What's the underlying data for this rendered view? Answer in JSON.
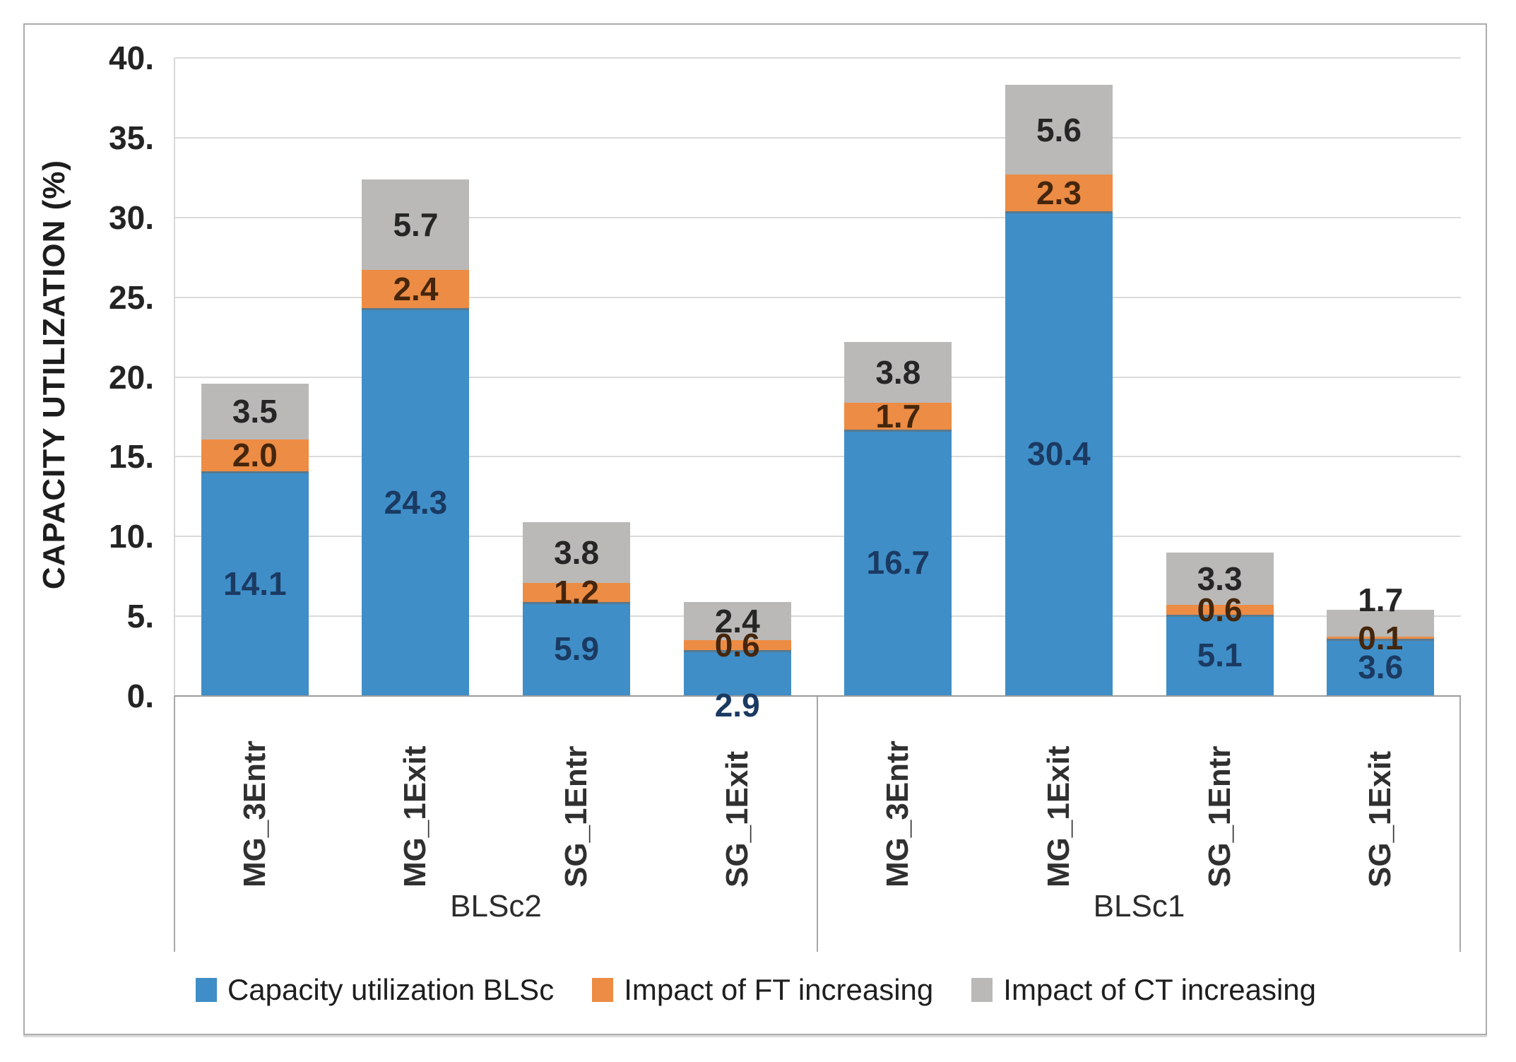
{
  "chart_data": {
    "type": "bar",
    "stacked": true,
    "title": "",
    "ylabel": "CAPACITY UTILIZATION (%)",
    "xlabel": "",
    "ylim": [
      0,
      40
    ],
    "ytick_step": 5,
    "yticks": [
      "40.",
      "35.",
      "30.",
      "25.",
      "20.",
      "15.",
      "10.",
      "5.",
      "0."
    ],
    "grid": "horizontal",
    "legend_position": "bottom",
    "group_labels": [
      "BLSc2",
      "BLSc1"
    ],
    "categories": [
      "MG_3Entr",
      "MG_1Exit",
      "SG_1Entr",
      "SG_1Exit",
      "MG_3Entr",
      "MG_1Exit",
      "SG_1Entr",
      "SG_1Exit"
    ],
    "series": [
      {
        "name": "Capacity utilization BLSc",
        "color": "#3F8EC7",
        "label_color": "#1B3A62",
        "values": [
          14.1,
          24.3,
          5.9,
          2.9,
          16.7,
          30.4,
          5.1,
          3.6
        ]
      },
      {
        "name": "Impact of FT increasing",
        "color": "#ED8C44",
        "label_color": "#45260C",
        "values": [
          2.0,
          2.4,
          1.2,
          0.6,
          1.7,
          2.3,
          0.6,
          0.1
        ]
      },
      {
        "name": "Impact of CT increasing",
        "color": "#BAB9B7",
        "label_color": "#262626",
        "values": [
          3.5,
          5.7,
          3.8,
          2.4,
          3.8,
          5.6,
          3.3,
          1.7
        ]
      }
    ],
    "totals": [
      19.6,
      32.4,
      10.9,
      5.9,
      22.2,
      38.3,
      9.0,
      5.4
    ],
    "layout": {
      "gridline_color": "#DADADA",
      "axis_line_color": "#9B9B9B",
      "figure_border_color": "#ACACAC",
      "label_dy": {
        "0-3": 46,
        "2-7": -33
      }
    }
  }
}
